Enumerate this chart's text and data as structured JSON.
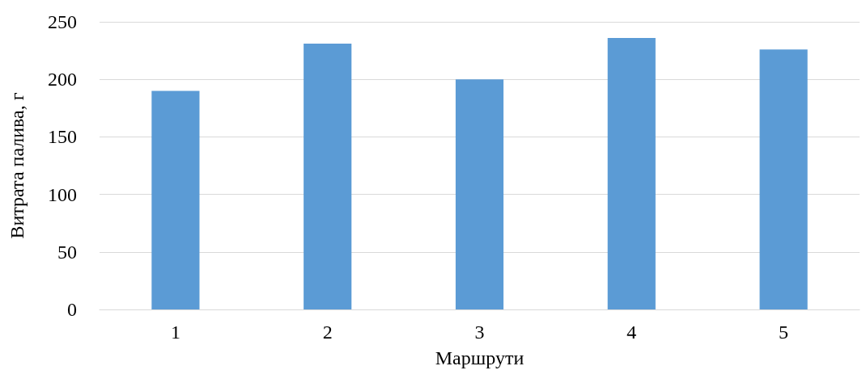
{
  "chart_data": {
    "type": "bar",
    "xlabel": "Маршрути",
    "ylabel": "Витрата палива, г",
    "categories": [
      "1",
      "2",
      "3",
      "4",
      "5"
    ],
    "values": [
      190,
      231,
      200,
      236,
      226
    ],
    "color": "#5b9bd5",
    "ylim": [
      0,
      250
    ],
    "yticks": [
      0,
      50,
      100,
      150,
      200,
      250
    ],
    "grid": "y"
  }
}
